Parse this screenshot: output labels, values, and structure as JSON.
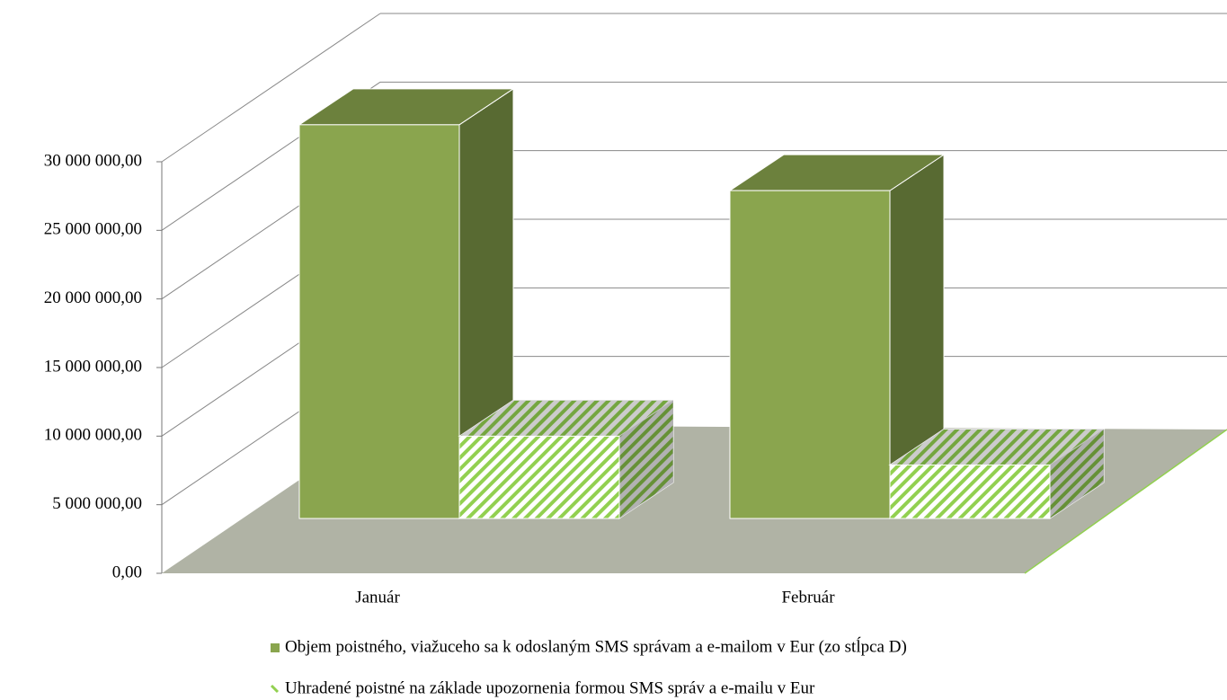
{
  "chart_data": {
    "type": "bar3d",
    "categories": [
      "Január",
      "Február"
    ],
    "series": [
      {
        "name": "Objem poistného, viažuceho sa k odoslaným SMS správam a e-mailom v Eur (zo stĺpca D)",
        "color": "#8aa54e",
        "values": [
          28700000,
          23900000
        ]
      },
      {
        "name": "Uhradené poistné na základe upozornenia formou SMS správ a e-mailu v Eur",
        "color": "#92d050",
        "values": [
          6000000,
          3900000
        ]
      }
    ],
    "ylim": [
      0,
      30000000
    ],
    "yticks": [
      {
        "value": 0,
        "label": "0,00"
      },
      {
        "value": 5000000,
        "label": "5 000 000,00"
      },
      {
        "value": 10000000,
        "label": "10 000 000,00"
      },
      {
        "value": 15000000,
        "label": "15 000 000,00"
      },
      {
        "value": 20000000,
        "label": "20 000 000,00"
      },
      {
        "value": 25000000,
        "label": "25 000 000,00"
      },
      {
        "value": 30000000,
        "label": "30 000 000,00"
      }
    ],
    "grid": true
  }
}
